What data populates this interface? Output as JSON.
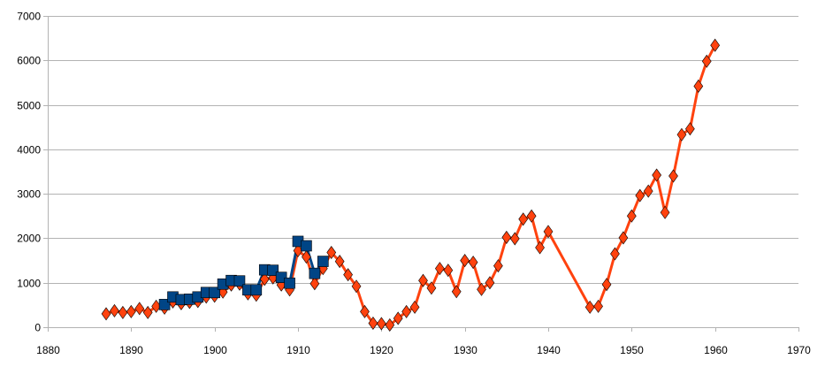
{
  "chart_data": {
    "type": "line",
    "title": "",
    "xlabel": "",
    "ylabel": "",
    "xlim": [
      1880,
      1970
    ],
    "ylim": [
      0,
      7000
    ],
    "xticks": [
      1880,
      1890,
      1900,
      1910,
      1920,
      1930,
      1940,
      1950,
      1960,
      1970
    ],
    "yticks": [
      0,
      1000,
      2000,
      3000,
      4000,
      5000,
      6000,
      7000
    ],
    "grid": "horizontal",
    "legend": "none",
    "series": [
      {
        "marker": "diamond",
        "color": "#ff420e",
        "stroke": "#ff420e",
        "points": [
          [
            1887,
            300
          ],
          [
            1888,
            370
          ],
          [
            1889,
            330
          ],
          [
            1890,
            350
          ],
          [
            1891,
            420
          ],
          [
            1892,
            330
          ],
          [
            1893,
            470
          ],
          [
            1894,
            430
          ],
          [
            1895,
            570
          ],
          [
            1896,
            530
          ],
          [
            1897,
            560
          ],
          [
            1898,
            580
          ],
          [
            1899,
            680
          ],
          [
            1900,
            700
          ],
          [
            1901,
            790
          ],
          [
            1902,
            950
          ],
          [
            1903,
            970
          ],
          [
            1904,
            750
          ],
          [
            1905,
            720
          ],
          [
            1906,
            1080
          ],
          [
            1907,
            1110
          ],
          [
            1908,
            950
          ],
          [
            1909,
            840
          ],
          [
            1910,
            1720
          ],
          [
            1911,
            1580
          ],
          [
            1912,
            980
          ],
          [
            1913,
            1320
          ],
          [
            1914,
            1680
          ],
          [
            1915,
            1480
          ],
          [
            1916,
            1180
          ],
          [
            1917,
            920
          ],
          [
            1918,
            350
          ],
          [
            1919,
            90
          ],
          [
            1920,
            80
          ],
          [
            1921,
            50
          ],
          [
            1922,
            200
          ],
          [
            1923,
            350
          ],
          [
            1924,
            450
          ],
          [
            1925,
            1050
          ],
          [
            1926,
            880
          ],
          [
            1927,
            1320
          ],
          [
            1928,
            1280
          ],
          [
            1929,
            800
          ],
          [
            1930,
            1500
          ],
          [
            1931,
            1460
          ],
          [
            1932,
            850
          ],
          [
            1933,
            1000
          ],
          [
            1934,
            1380
          ],
          [
            1935,
            2020
          ],
          [
            1936,
            1990
          ],
          [
            1937,
            2430
          ],
          [
            1938,
            2500
          ],
          [
            1939,
            1790
          ],
          [
            1940,
            2150
          ],
          [
            1945,
            450
          ],
          [
            1946,
            470
          ],
          [
            1947,
            960
          ],
          [
            1948,
            1650
          ],
          [
            1949,
            2010
          ],
          [
            1950,
            2500
          ],
          [
            1951,
            2960
          ],
          [
            1952,
            3060
          ],
          [
            1953,
            3420
          ],
          [
            1954,
            2580
          ],
          [
            1955,
            3400
          ],
          [
            1956,
            4330
          ],
          [
            1957,
            4460
          ],
          [
            1958,
            5420
          ],
          [
            1959,
            5980
          ],
          [
            1960,
            6340
          ]
        ]
      },
      {
        "marker": "square",
        "color": "#004586",
        "stroke": "#004586",
        "points": [
          [
            1894,
            510
          ],
          [
            1895,
            680
          ],
          [
            1896,
            620
          ],
          [
            1897,
            630
          ],
          [
            1898,
            680
          ],
          [
            1899,
            780
          ],
          [
            1900,
            780
          ],
          [
            1901,
            970
          ],
          [
            1902,
            1050
          ],
          [
            1903,
            1040
          ],
          [
            1904,
            840
          ],
          [
            1905,
            840
          ],
          [
            1906,
            1290
          ],
          [
            1907,
            1280
          ],
          [
            1908,
            1120
          ],
          [
            1909,
            990
          ],
          [
            1910,
            1930
          ],
          [
            1911,
            1830
          ],
          [
            1912,
            1210
          ],
          [
            1913,
            1480
          ]
        ]
      }
    ]
  }
}
